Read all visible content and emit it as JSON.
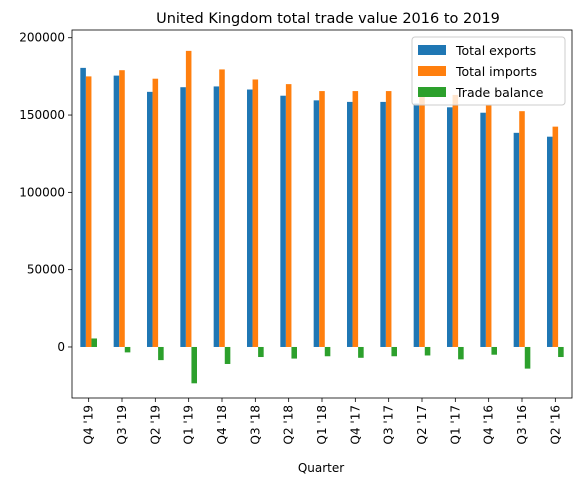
{
  "chart_data": {
    "type": "bar",
    "title": "United Kingdom total trade value 2016 to 2019",
    "xlabel": "Quarter",
    "ylabel": "",
    "categories": [
      "Q4 '19",
      "Q3 '19",
      "Q2 '19",
      "Q1 '19",
      "Q4 '18",
      "Q3 '18",
      "Q2 '18",
      "Q1 '18",
      "Q4 '17",
      "Q3 '17",
      "Q2 '17",
      "Q1 '17",
      "Q4 '16",
      "Q3 '16",
      "Q2 '16"
    ],
    "series": [
      {
        "name": "Total exports",
        "color": "#1f77b4",
        "values": [
          180500,
          175500,
          165000,
          168000,
          168500,
          166500,
          162500,
          159500,
          158500,
          158500,
          157500,
          155000,
          151500,
          138500,
          136000
        ]
      },
      {
        "name": "Total imports",
        "color": "#ff7f0e",
        "values": [
          175000,
          179000,
          173500,
          191500,
          179500,
          173000,
          170000,
          165500,
          165500,
          165500,
          163000,
          163000,
          156500,
          152500,
          142500
        ]
      },
      {
        "name": "Trade balance",
        "color": "#2ca02c",
        "values": [
          5500,
          -3500,
          -8500,
          -23500,
          -11000,
          -6500,
          -7500,
          -6000,
          -7000,
          -6000,
          -5500,
          -8000,
          -5000,
          -14000,
          -6500
        ]
      }
    ],
    "ylim": [
      -33000,
      205000
    ],
    "yticks": [
      0,
      50000,
      100000,
      150000,
      200000
    ],
    "ytick_labels": [
      "0",
      "50000",
      "100000",
      "150000",
      "200000"
    ],
    "grid": false,
    "legend_position": "top-right"
  }
}
